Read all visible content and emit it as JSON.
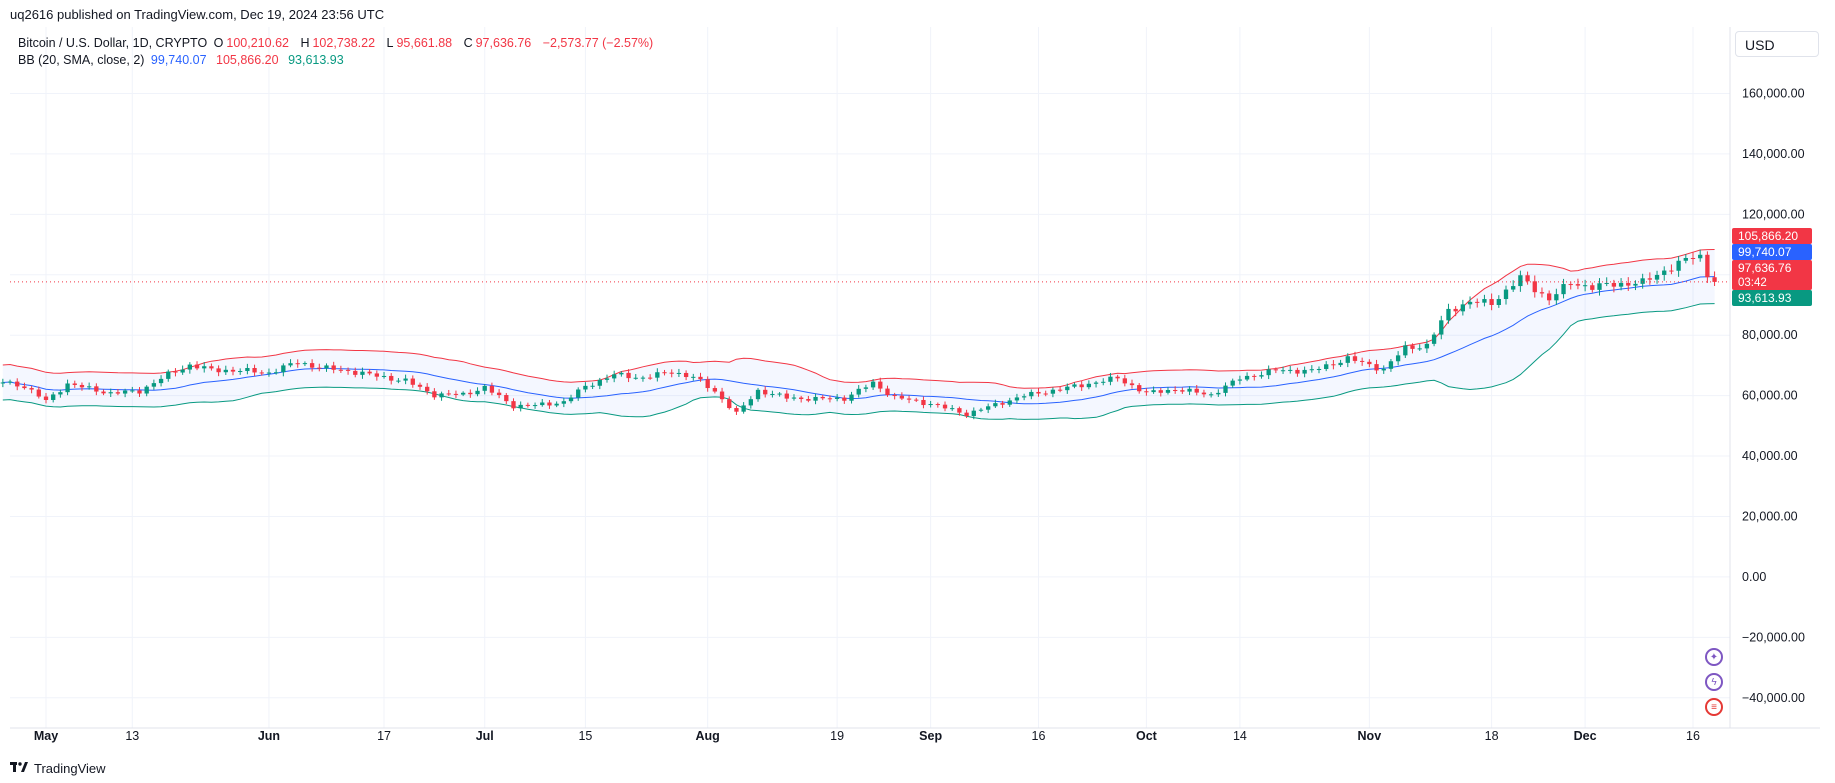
{
  "header": {
    "published": "uq2616 published on TradingView.com, Dec 19, 2024 23:56 UTC"
  },
  "legend": {
    "symbol": "Bitcoin / U.S. Dollar, 1D, CRYPTO",
    "o_label": "O",
    "o_value": "100,210.62",
    "h_label": "H",
    "h_value": "102,738.22",
    "l_label": "L",
    "l_value": "95,661.88",
    "c_label": "C",
    "c_value": "97,636.76",
    "change": "−2,573.77 (−2.57%)",
    "bb_label": "BB (20, SMA, close, 2)",
    "bb_basis": "99,740.07",
    "bb_upper": "105,866.20",
    "bb_lower": "93,613.93"
  },
  "currency": "USD",
  "footer": {
    "brand": "TradingView"
  },
  "icons": [
    "sparkle-icon",
    "lightning-icon",
    "us-flag-icon"
  ],
  "colors": {
    "up": "#089981",
    "down": "#f23645",
    "basis": "#2962ff",
    "upper": "#f23645",
    "lower": "#089981",
    "band_fill": "#2962ff"
  },
  "chart_data": {
    "type": "candlestick",
    "symbol": "Bitcoin / U.S. Dollar",
    "interval": "1D",
    "ylim": [
      -50000,
      182000
    ],
    "y_ticks": [
      -40000,
      -20000,
      0,
      20000,
      40000,
      60000,
      80000,
      100000,
      120000,
      140000,
      160000
    ],
    "y_tick_labels": [
      "−40,000.00",
      "−20,000.00",
      "0.00",
      "20,000.00",
      "40,000.00",
      "60,000.00",
      "80,000.00",
      "",
      "120,000.00",
      "140,000.00",
      "160,000.00"
    ],
    "x_tick_labels": [
      "May",
      "13",
      "Jun",
      "17",
      "Jul",
      "15",
      "Aug",
      "19",
      "Sep",
      "16",
      "Oct",
      "14",
      "Nov",
      "18",
      "Dec",
      "16"
    ],
    "x_tick_dates": [
      "2024-05-01",
      "2024-05-13",
      "2024-06-01",
      "2024-06-17",
      "2024-07-01",
      "2024-07-15",
      "2024-08-01",
      "2024-08-19",
      "2024-09-01",
      "2024-09-16",
      "2024-10-01",
      "2024-10-14",
      "2024-11-01",
      "2024-11-18",
      "2024-12-01",
      "2024-12-16"
    ],
    "grid": true,
    "last_close": 97636.76,
    "price_tags": [
      {
        "value": 105866.2,
        "label": "105,866.20",
        "color": "#f23645"
      },
      {
        "value": 99740.07,
        "label": "99,740.07",
        "color": "#2962ff"
      },
      {
        "value": 97636.76,
        "label": "97,636.76",
        "sub": "03:42",
        "color": "#f23645"
      },
      {
        "value": 93613.93,
        "label": "93,613.93",
        "color": "#089981"
      }
    ],
    "close_anchors": [
      [
        "2024-04-25",
        64500
      ],
      [
        "2024-04-28",
        63100
      ],
      [
        "2024-05-01",
        58200
      ],
      [
        "2024-05-04",
        63900
      ],
      [
        "2024-05-07",
        62300
      ],
      [
        "2024-05-10",
        60800
      ],
      [
        "2024-05-14",
        61500
      ],
      [
        "2024-05-18",
        67000
      ],
      [
        "2024-05-21",
        70100
      ],
      [
        "2024-05-24",
        68500
      ],
      [
        "2024-05-28",
        68300
      ],
      [
        "2024-06-01",
        67600
      ],
      [
        "2024-06-05",
        71100
      ],
      [
        "2024-06-08",
        69300
      ],
      [
        "2024-06-12",
        68200
      ],
      [
        "2024-06-16",
        66500
      ],
      [
        "2024-06-20",
        64900
      ],
      [
        "2024-06-24",
        60300
      ],
      [
        "2024-06-28",
        60400
      ],
      [
        "2024-07-01",
        62700
      ],
      [
        "2024-07-05",
        56600
      ],
      [
        "2024-07-08",
        56800
      ],
      [
        "2024-07-12",
        57900
      ],
      [
        "2024-07-15",
        63100
      ],
      [
        "2024-07-19",
        66900
      ],
      [
        "2024-07-23",
        65900
      ],
      [
        "2024-07-27",
        67900
      ],
      [
        "2024-07-30",
        66100
      ],
      [
        "2024-08-02",
        61400
      ],
      [
        "2024-08-05",
        54000
      ],
      [
        "2024-08-08",
        61700
      ],
      [
        "2024-08-12",
        59300
      ],
      [
        "2024-08-16",
        58900
      ],
      [
        "2024-08-20",
        59100
      ],
      [
        "2024-08-24",
        64200
      ],
      [
        "2024-08-27",
        59400
      ],
      [
        "2024-09-01",
        57300
      ],
      [
        "2024-09-06",
        53900
      ],
      [
        "2024-09-10",
        57000
      ],
      [
        "2024-09-14",
        60000
      ],
      [
        "2024-09-18",
        61700
      ],
      [
        "2024-09-22",
        63500
      ],
      [
        "2024-09-27",
        65800
      ],
      [
        "2024-10-01",
        60800
      ],
      [
        "2024-10-05",
        62100
      ],
      [
        "2024-10-10",
        60300
      ],
      [
        "2024-10-14",
        65700
      ],
      [
        "2024-10-19",
        68400
      ],
      [
        "2024-10-24",
        68200
      ],
      [
        "2024-10-29",
        72300
      ],
      [
        "2024-11-03",
        68700
      ],
      [
        "2024-11-06",
        75800
      ],
      [
        "2024-11-09",
        76600
      ],
      [
        "2024-11-12",
        88200
      ],
      [
        "2024-11-15",
        91000
      ],
      [
        "2024-11-18",
        90600
      ],
      [
        "2024-11-22",
        98900
      ],
      [
        "2024-11-26",
        91900
      ],
      [
        "2024-11-29",
        97400
      ],
      [
        "2024-12-02",
        95900
      ],
      [
        "2024-12-05",
        96900
      ],
      [
        "2024-12-09",
        97400
      ],
      [
        "2024-12-12",
        101400
      ],
      [
        "2024-12-16",
        106000
      ],
      [
        "2024-12-17",
        106100
      ],
      [
        "2024-12-18",
        100210
      ],
      [
        "2024-12-19",
        97636.76
      ]
    ]
  }
}
